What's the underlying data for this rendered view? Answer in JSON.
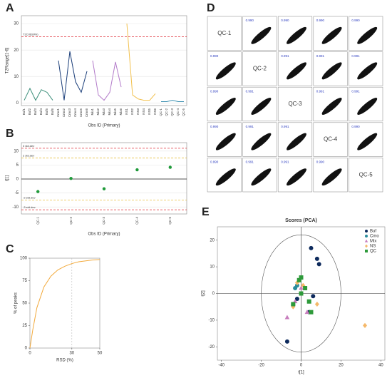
{
  "chart_data": [
    {
      "type": "line",
      "panel_label": "A",
      "ylabel": "T2Range[1-6]",
      "xlabel": "Obs ID (Primary)",
      "categories": [
        "Buf1",
        "Buf2",
        "Buf3",
        "Buf4",
        "Buf5",
        "Buf6",
        "Cmo1",
        "Cmo2",
        "Cmo3",
        "Cmo4",
        "Cmo5",
        "Cmo6",
        "Mix1",
        "Mix2",
        "Mix3",
        "Mix4",
        "Mix5",
        "Mix6",
        "NS1",
        "NS2",
        "NS3",
        "NS4",
        "NS5",
        "NS6",
        "QC-1",
        "QC-2",
        "QC-3",
        "QC-4",
        "QC-5"
      ],
      "series": [
        {
          "name": "Buf",
          "color": "#3c8f7a",
          "values": [
            1,
            5.5,
            1,
            5,
            4,
            1,
            null,
            null,
            null,
            null,
            null,
            null,
            null,
            null,
            null,
            null,
            null,
            null,
            null,
            null,
            null,
            null,
            null,
            null,
            null,
            null,
            null,
            null,
            null
          ]
        },
        {
          "name": "Cmo",
          "color": "#1c3f7a",
          "values": [
            null,
            null,
            null,
            null,
            null,
            null,
            16,
            1,
            19.5,
            8,
            4,
            12,
            null,
            null,
            null,
            null,
            null,
            null,
            null,
            null,
            null,
            null,
            null,
            null,
            null,
            null,
            null,
            null,
            null
          ]
        },
        {
          "name": "Mix",
          "color": "#b27ac9",
          "values": [
            null,
            null,
            null,
            null,
            null,
            null,
            null,
            null,
            null,
            null,
            null,
            null,
            16,
            3,
            1,
            4,
            15.5,
            6,
            null,
            null,
            null,
            null,
            null,
            null,
            null,
            null,
            null,
            null,
            null
          ]
        },
        {
          "name": "NS",
          "color": "#f2c14e",
          "values": [
            null,
            null,
            null,
            null,
            null,
            null,
            null,
            null,
            null,
            null,
            null,
            null,
            null,
            null,
            null,
            null,
            null,
            null,
            30,
            3,
            1.5,
            1,
            1,
            3.5,
            null,
            null,
            null,
            null,
            null
          ]
        },
        {
          "name": "QC",
          "color": "#3a8fb0",
          "values": [
            null,
            null,
            null,
            null,
            null,
            null,
            null,
            null,
            null,
            null,
            null,
            null,
            null,
            null,
            null,
            null,
            null,
            null,
            null,
            null,
            null,
            null,
            null,
            null,
            0.5,
            0.5,
            1,
            0.5,
            0.5
          ]
        }
      ],
      "ylim": [
        -1,
        33
      ],
      "yticks": [
        0,
        10,
        20,
        30
      ],
      "grid": true,
      "ref_lines": [
        {
          "value": 25,
          "label": "T2Crit(99%)",
          "color": "#e0303a"
        }
      ]
    },
    {
      "type": "dot",
      "panel_label": "B",
      "ylabel": "t[1]",
      "xlabel": "Obs ID (Primary)",
      "categories": [
        "QC-1",
        "QC-2",
        "QC-3",
        "QC-4",
        "QC-5"
      ],
      "values": [
        -4.5,
        0.2,
        -3.5,
        3.3,
        4.2
      ],
      "color": "#1f9a3a",
      "ylim": [
        -12.5,
        13
      ],
      "yticks": [
        -10,
        -5,
        0,
        5,
        10
      ],
      "grid": true,
      "ref_lines": [
        {
          "value": 11,
          "label": "3 std.dev",
          "color": "#e0303a"
        },
        {
          "value": 7.5,
          "label": "2 std.dev",
          "color": "#e8c040"
        },
        {
          "value": -7.5,
          "label": "-2 std.dev",
          "color": "#e8c040"
        },
        {
          "value": -11,
          "label": "-3 std.dev",
          "color": "#e0303a"
        }
      ]
    },
    {
      "type": "line",
      "panel_label": "C",
      "ylabel": "% of peaks",
      "xlabel": "RSD (%)",
      "x": [
        0,
        2,
        5,
        10,
        15,
        20,
        25,
        30,
        35,
        40,
        45,
        50
      ],
      "series": [
        {
          "name": null,
          "color": "#f2a93b",
          "values": [
            0,
            20,
            45,
            68,
            80,
            87,
            91,
            94,
            96,
            97,
            98,
            98.5
          ]
        }
      ],
      "xlim": [
        0,
        50
      ],
      "xticks": [
        0,
        30,
        50
      ],
      "ylim": [
        0,
        100
      ],
      "yticks": [
        0,
        25,
        50,
        75,
        100
      ],
      "vlines": [
        30
      ]
    },
    {
      "type": "scatter_matrix",
      "panel_label": "D",
      "variables": [
        "QC-1",
        "QC-2",
        "QC-3",
        "QC-4",
        "QC-5"
      ],
      "correlations": [
        [
          null,
          0.99,
          0.99,
          0.99,
          0.99
        ],
        [
          0.99,
          null,
          0.991,
          0.991,
          0.991
        ],
        [
          0.99,
          0.991,
          null,
          0.991,
          0.991
        ],
        [
          0.99,
          0.991,
          0.991,
          null,
          0.99
        ],
        [
          0.99,
          0.991,
          0.991,
          0.99,
          null
        ]
      ],
      "correlation_labels": [
        [
          null,
          "0.990",
          "0.990",
          "0.990",
          "0.990"
        ],
        [
          "0.990",
          null,
          "0.991",
          "0.991",
          "0.991"
        ],
        [
          "0.990",
          "0.991",
          null,
          "0.991",
          "0.991"
        ],
        [
          "0.990",
          "0.991",
          "0.991",
          null,
          "0.990"
        ],
        [
          "0.990",
          "0.991",
          "0.991",
          "0.990",
          null
        ]
      ]
    },
    {
      "type": "scatter",
      "panel_label": "E",
      "title": "Scores (PCA)",
      "xlabel": "t[1]",
      "ylabel": "t[2]",
      "xlim": [
        -42,
        42
      ],
      "xticks": [
        -40,
        -20,
        0,
        20,
        40
      ],
      "ylim": [
        -25,
        25
      ],
      "yticks": [
        -20,
        -10,
        0,
        10,
        20
      ],
      "ellipse_radii": [
        20,
        22
      ],
      "legend": "top-right",
      "series": [
        {
          "name": "Buf",
          "color": "#0d2a5c",
          "marker": "circle",
          "x": [
            5,
            8,
            9,
            -2,
            4,
            6,
            -7
          ],
          "y": [
            17,
            13,
            11,
            -2,
            -7,
            -1,
            -18
          ]
        },
        {
          "name": "Cmo",
          "color": "#2a8c9c",
          "marker": "circle",
          "x": [
            -2,
            -3,
            -4
          ],
          "y": [
            3,
            2,
            -4
          ]
        },
        {
          "name": "Mix",
          "color": "#c77dbd",
          "marker": "triangle",
          "x": [
            -4,
            -3,
            -7,
            0,
            3
          ],
          "y": [
            -4,
            -3,
            -9,
            2,
            -7
          ]
        },
        {
          "name": "NS",
          "color": "#f5b86a",
          "marker": "diamond",
          "x": [
            1,
            32,
            8,
            -2,
            -4
          ],
          "y": [
            3,
            -12,
            -4,
            4,
            -5
          ]
        },
        {
          "name": "QC",
          "color": "#2e9a3a",
          "marker": "square",
          "x": [
            0,
            -1,
            0,
            4,
            5,
            -4,
            2
          ],
          "y": [
            6,
            5,
            0,
            -3,
            -7,
            -4,
            2
          ]
        }
      ]
    }
  ]
}
